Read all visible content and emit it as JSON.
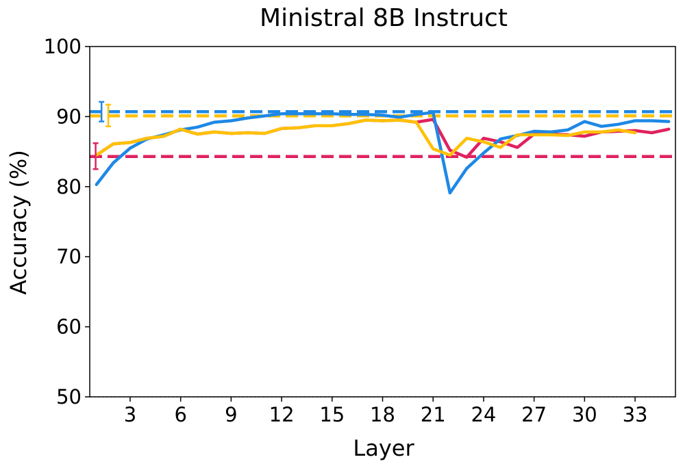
{
  "chart_data": {
    "type": "line",
    "title": "Ministral 8B Instruct",
    "xlabel": "Layer",
    "ylabel": "Accuracy (%)",
    "xlim": [
      0.6,
      35.4
    ],
    "ylim": [
      50,
      100
    ],
    "xticks": [
      3,
      6,
      9,
      12,
      15,
      18,
      21,
      24,
      27,
      30,
      33
    ],
    "yticks": [
      50,
      60,
      70,
      80,
      90,
      100
    ],
    "grid": false,
    "legend": "none",
    "reference_line_y": 50,
    "series": [
      {
        "color": "#e0225f",
        "x": [
          1,
          2,
          3,
          4,
          5,
          6,
          7,
          8,
          9,
          10,
          11,
          12,
          13,
          14,
          15,
          16,
          17,
          18,
          19,
          20,
          21,
          22,
          23,
          24,
          25,
          26,
          27,
          28,
          29,
          30,
          31,
          32,
          33,
          34,
          35
        ],
        "values": [
          84.5,
          86.1,
          86.3,
          86.9,
          87.2,
          88.2,
          87.5,
          87.8,
          87.6,
          87.7,
          87.6,
          88.3,
          88.4,
          88.7,
          88.7,
          89.0,
          89.5,
          89.4,
          89.5,
          89.2,
          89.6,
          85.2,
          84.2,
          86.9,
          86.4,
          85.6,
          87.5,
          87.5,
          87.4,
          87.2,
          87.8,
          87.9,
          88.0,
          87.7,
          88.2
        ]
      },
      {
        "color": "#1e88e5",
        "x": [
          1,
          2,
          3,
          4,
          5,
          6,
          7,
          8,
          9,
          10,
          11,
          12,
          13,
          14,
          15,
          16,
          17,
          18,
          19,
          20,
          21,
          22,
          23,
          24,
          25,
          26,
          27,
          28,
          29,
          30,
          31,
          32,
          33,
          34,
          35
        ],
        "values": [
          80.3,
          83.4,
          85.5,
          86.8,
          87.4,
          88.1,
          88.5,
          89.2,
          89.4,
          89.8,
          90.1,
          90.4,
          90.4,
          90.4,
          90.4,
          90.3,
          90.3,
          90.2,
          89.9,
          90.3,
          90.6,
          79.1,
          82.6,
          84.8,
          86.8,
          87.3,
          87.9,
          87.8,
          88.1,
          89.3,
          88.6,
          88.9,
          89.4,
          89.4,
          89.3
        ]
      },
      {
        "color": "#ffc107",
        "x": [
          1,
          2,
          3,
          4,
          5,
          6,
          7,
          8,
          9,
          10,
          11,
          12,
          13,
          14,
          15,
          16,
          17,
          18,
          19,
          20,
          21,
          22,
          23,
          24,
          25,
          26,
          27,
          28,
          29,
          30,
          31,
          32,
          33
        ],
        "values": [
          84.5,
          86.1,
          86.3,
          86.9,
          87.2,
          88.2,
          87.5,
          87.8,
          87.6,
          87.7,
          87.6,
          88.3,
          88.4,
          88.7,
          88.7,
          89.0,
          89.5,
          89.4,
          89.5,
          89.2,
          85.4,
          84.5,
          86.9,
          86.4,
          85.6,
          87.4,
          87.4,
          87.4,
          87.3,
          87.8,
          87.8,
          88.1,
          87.7
        ]
      }
    ],
    "baselines": [
      {
        "color": "#1e88e5",
        "y": 90.7,
        "err_low": 89.3,
        "err_high": 92.1,
        "err_x": 1.3
      },
      {
        "color": "#ffc107",
        "y": 90.1,
        "err_low": 88.6,
        "err_high": 91.7,
        "err_x": 1.7
      },
      {
        "color": "#e0225f",
        "y": 84.3,
        "err_low": 82.5,
        "err_high": 86.2,
        "err_x": 0.95
      }
    ]
  }
}
